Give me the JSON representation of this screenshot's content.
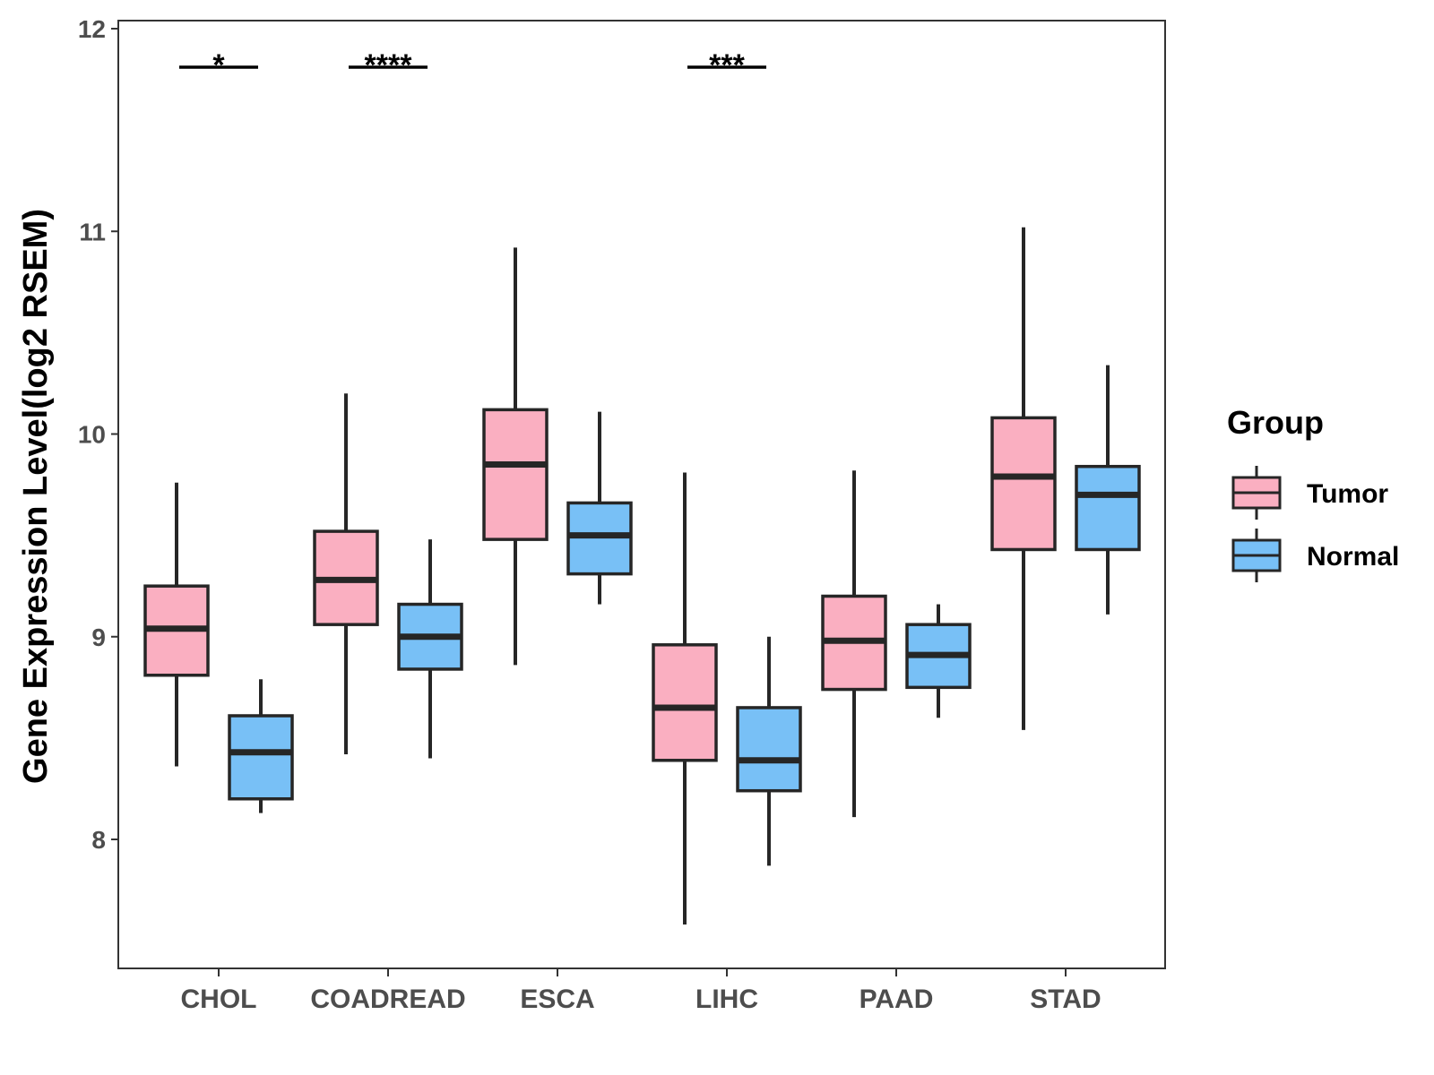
{
  "chart_data": {
    "type": "box",
    "title": "",
    "xlabel": "",
    "ylabel": "Gene Expression Level(log2 RSEM)",
    "ylim": [
      7.4,
      12.04
    ],
    "yticks": [
      8,
      9,
      10,
      11,
      12
    ],
    "ytick_labels": [
      "8",
      "9",
      "10",
      "11",
      "12"
    ],
    "categories": [
      "CHOL",
      "COADREAD",
      "ESCA",
      "LIHC",
      "PAAD",
      "STAD"
    ],
    "legend": {
      "title": "Group",
      "position": "right",
      "entries": [
        "Tumor",
        "Normal"
      ]
    },
    "series": [
      {
        "name": "Tumor",
        "color": "#FAAFC1",
        "boxes": [
          {
            "category": "CHOL",
            "whisker_low": 8.36,
            "q1": 8.81,
            "median": 9.04,
            "q3": 9.25,
            "whisker_high": 9.76
          },
          {
            "category": "COADREAD",
            "whisker_low": 8.42,
            "q1": 9.06,
            "median": 9.28,
            "q3": 9.52,
            "whisker_high": 10.2
          },
          {
            "category": "ESCA",
            "whisker_low": 8.86,
            "q1": 9.48,
            "median": 9.85,
            "q3": 10.12,
            "whisker_high": 10.92
          },
          {
            "category": "LIHC",
            "whisker_low": 7.58,
            "q1": 8.39,
            "median": 8.65,
            "q3": 8.96,
            "whisker_high": 9.81
          },
          {
            "category": "PAAD",
            "whisker_low": 8.11,
            "q1": 8.74,
            "median": 8.98,
            "q3": 9.2,
            "whisker_high": 9.82
          },
          {
            "category": "STAD",
            "whisker_low": 8.54,
            "q1": 9.43,
            "median": 9.79,
            "q3": 10.08,
            "whisker_high": 11.02
          }
        ]
      },
      {
        "name": "Normal",
        "color": "#78C0F6",
        "boxes": [
          {
            "category": "CHOL",
            "whisker_low": 8.13,
            "q1": 8.2,
            "median": 8.43,
            "q3": 8.61,
            "whisker_high": 8.79
          },
          {
            "category": "COADREAD",
            "whisker_low": 8.4,
            "q1": 8.84,
            "median": 9.0,
            "q3": 9.16,
            "whisker_high": 9.48
          },
          {
            "category": "ESCA",
            "whisker_low": 9.16,
            "q1": 9.31,
            "median": 9.5,
            "q3": 9.66,
            "whisker_high": 10.11
          },
          {
            "category": "LIHC",
            "whisker_low": 7.87,
            "q1": 8.24,
            "median": 8.39,
            "q3": 8.65,
            "whisker_high": 9.0
          },
          {
            "category": "PAAD",
            "whisker_low": 8.6,
            "q1": 8.75,
            "median": 8.91,
            "q3": 9.06,
            "whisker_high": 9.16
          },
          {
            "category": "STAD",
            "whisker_low": 9.11,
            "q1": 9.43,
            "median": 9.7,
            "q3": 9.84,
            "whisker_high": 10.34
          }
        ]
      }
    ],
    "significance": [
      {
        "category": "CHOL",
        "label": "*",
        "y": 11.81
      },
      {
        "category": "COADREAD",
        "label": "****",
        "y": 11.81
      },
      {
        "category": "LIHC",
        "label": "***",
        "y": 11.81
      }
    ]
  }
}
